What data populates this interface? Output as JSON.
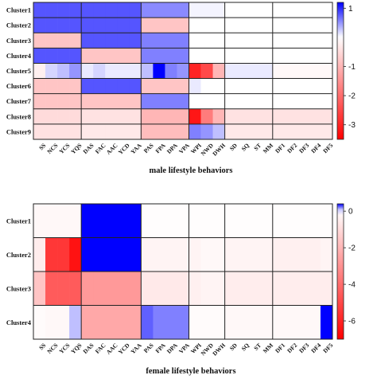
{
  "chart_data": [
    {
      "type": "heatmap",
      "xlabel": "male lifestyle behaviors",
      "rows": [
        "Cluster1",
        "Cluster2",
        "Cluster3",
        "Cluster4",
        "Cluster5",
        "Cluster6",
        "Cluster7",
        "Cluster8",
        "Cluster9"
      ],
      "columns": [
        "SS",
        "NCS",
        "YCS",
        "YQS",
        "DAS",
        "FAC",
        "AAC",
        "YCD",
        "YAA",
        "PAS",
        "FPA",
        "DPA",
        "VPA",
        "WPI",
        "NWD",
        "DWH",
        "SD",
        "SQ",
        "ST",
        "MM",
        "DF1",
        "DF2",
        "DF3",
        "DF4",
        "DF5"
      ],
      "values": [
        [
          0.8,
          0.8,
          0.8,
          0.8,
          0.8,
          0.8,
          0.8,
          0.8,
          0.8,
          0.55,
          0.55,
          0.55,
          0.55,
          0.05,
          0.05,
          0.05,
          0.0,
          0.0,
          0.0,
          0.0,
          0.0,
          0.0,
          0.0,
          0.0,
          0.0
        ],
        [
          0.8,
          0.8,
          0.8,
          0.8,
          0.8,
          0.8,
          0.8,
          0.8,
          0.8,
          -0.8,
          -0.8,
          -0.8,
          -0.8,
          0.0,
          0.0,
          0.0,
          0.0,
          0.0,
          0.0,
          0.0,
          0.0,
          0.0,
          0.0,
          0.0,
          0.0
        ],
        [
          -0.8,
          -0.8,
          -0.8,
          -0.8,
          0.8,
          0.8,
          0.8,
          0.8,
          0.8,
          0.6,
          0.6,
          0.6,
          0.6,
          0.0,
          0.0,
          0.0,
          0.0,
          0.0,
          0.0,
          0.0,
          0.0,
          0.0,
          0.0,
          0.0,
          0.0
        ],
        [
          0.8,
          0.8,
          0.8,
          0.8,
          -0.8,
          -0.8,
          -0.8,
          -0.8,
          -0.8,
          0.6,
          0.6,
          0.6,
          0.6,
          0.0,
          0.0,
          0.0,
          0.0,
          0.0,
          0.0,
          0.0,
          0.0,
          0.0,
          0.0,
          0.0,
          0.0
        ],
        [
          -0.2,
          0.2,
          0.3,
          0.5,
          0.1,
          0.2,
          0.1,
          0.1,
          0.1,
          0.3,
          1.3,
          0.6,
          0.5,
          -3.0,
          -2.5,
          -1.0,
          0.1,
          0.1,
          0.1,
          0.1,
          -0.1,
          -0.1,
          -0.1,
          -0.1,
          -0.1
        ],
        [
          -0.8,
          -0.8,
          -0.8,
          -0.8,
          0.8,
          0.8,
          0.8,
          0.8,
          0.8,
          -0.8,
          -0.8,
          -0.8,
          -0.8,
          0.1,
          0.0,
          0.0,
          0.0,
          0.0,
          0.0,
          0.0,
          0.0,
          0.0,
          0.0,
          0.0,
          0.0
        ],
        [
          -0.8,
          -0.8,
          -0.8,
          -0.8,
          -0.8,
          -0.8,
          -0.8,
          -0.8,
          -0.8,
          0.6,
          0.6,
          0.6,
          0.6,
          0.0,
          0.0,
          0.0,
          0.0,
          0.0,
          0.0,
          0.0,
          0.0,
          0.0,
          0.0,
          0.0,
          0.0
        ],
        [
          -0.5,
          -0.5,
          -0.5,
          -0.5,
          -0.4,
          -0.4,
          -0.4,
          -0.4,
          -0.4,
          -1.0,
          -1.0,
          -1.0,
          -1.0,
          -3.2,
          -1.8,
          -1.0,
          -0.4,
          -0.4,
          -0.4,
          -0.4,
          -0.4,
          -0.4,
          -0.4,
          -0.4,
          -0.4
        ],
        [
          -0.4,
          -0.4,
          -0.4,
          -0.4,
          -0.3,
          -0.3,
          -0.3,
          -0.3,
          -0.3,
          -0.9,
          -0.9,
          -0.9,
          -0.9,
          0.6,
          0.5,
          0.3,
          -0.3,
          -0.3,
          -0.3,
          -0.3,
          -0.3,
          -0.3,
          -0.3,
          -0.3,
          -0.3
        ]
      ],
      "colorbar": {
        "min": -3.5,
        "max": 1.2,
        "ticks": [
          "1",
          "-1",
          "-2",
          "-3"
        ],
        "tick_values": [
          1,
          -1,
          -2,
          -3
        ]
      },
      "colors": {
        "low": "#ff0000",
        "mid": "#ffffff",
        "high": "#0000ff"
      }
    },
    {
      "type": "heatmap",
      "xlabel": "female lifestyle behaviors",
      "rows": [
        "Cluster1",
        "Cluster2",
        "Cluster3",
        "Cluster4"
      ],
      "columns": [
        "SS",
        "NCS",
        "YCS",
        "YQS",
        "DAS",
        "FAC",
        "AAC",
        "YCD",
        "YAA",
        "PAS",
        "FPA",
        "DPA",
        "VPA",
        "WPI",
        "NWD",
        "DWH",
        "SD",
        "SQ",
        "ST",
        "MM",
        "DF1",
        "DF2",
        "DF3",
        "DF4",
        "DF5"
      ],
      "values": [
        [
          -0.2,
          -0.2,
          -0.2,
          -0.2,
          0.9,
          0.9,
          0.9,
          0.9,
          0.9,
          -0.05,
          -0.05,
          -0.05,
          -0.05,
          -0.05,
          -0.05,
          -0.05,
          -0.05,
          -0.05,
          -0.05,
          -0.05,
          -0.05,
          -0.05,
          -0.05,
          -0.05,
          -0.05
        ],
        [
          -0.5,
          -5.5,
          -5.5,
          -6.5,
          0.9,
          0.9,
          0.9,
          0.9,
          0.9,
          -0.3,
          -0.3,
          -0.3,
          -0.3,
          -0.3,
          -0.2,
          -0.2,
          -0.3,
          -0.3,
          -0.3,
          -0.3,
          -0.4,
          -0.4,
          -0.4,
          -0.4,
          -0.3
        ],
        [
          -1.6,
          -4.5,
          -4.5,
          -4.5,
          -2.8,
          -2.8,
          -2.8,
          -2.8,
          -2.8,
          -0.6,
          -0.6,
          -0.6,
          -0.6,
          -0.4,
          -0.3,
          -0.3,
          -0.5,
          -0.5,
          -0.5,
          -0.5,
          -0.5,
          -0.5,
          -0.5,
          -0.5,
          -0.5
        ],
        [
          -0.1,
          -0.2,
          -0.2,
          0.1,
          -2.4,
          -2.4,
          -2.4,
          -2.4,
          -2.4,
          0.25,
          0.2,
          0.2,
          0.2,
          -0.1,
          -0.1,
          -0.1,
          -0.2,
          -0.2,
          -0.2,
          -0.2,
          -0.2,
          -0.2,
          -0.2,
          -0.2,
          0.5
        ]
      ],
      "colorbar": {
        "min": -7,
        "max": 0.4,
        "ticks": [
          "0",
          "-2",
          "-4",
          "-6"
        ],
        "tick_values": [
          0,
          -2,
          -4,
          -6
        ]
      },
      "colors": {
        "low": "#ff0000",
        "mid": "#ffffff",
        "high": "#0000ff"
      }
    }
  ]
}
